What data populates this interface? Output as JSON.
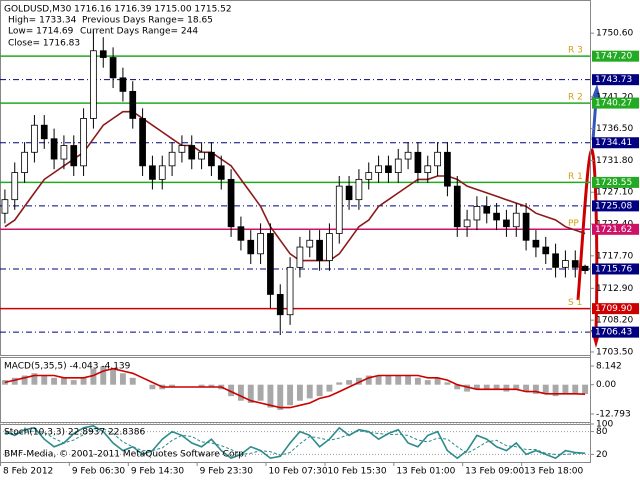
{
  "chart_data": [
    {
      "type": "candlestick",
      "annotations": [
        "GOLDUSD,M30  1716.16 1716.39 1715.00 1715.52",
        "High= 1733.34",
        "Previous Days Range= 18.65",
        "Low= 1714.69",
        "Current Days Range= 244",
        "Close= 1716.83"
      ],
      "categories": [
        "8 Feb 2012",
        null,
        null,
        null,
        null,
        null,
        null,
        "9 Feb 06:30",
        null,
        null,
        null,
        null,
        null,
        "9 Feb 14:30",
        null,
        null,
        null,
        null,
        null,
        null,
        "9 Feb 23:30",
        null,
        null,
        null,
        null,
        null,
        null,
        "10 Feb 07:30",
        null,
        null,
        null,
        null,
        null,
        "10 Feb 15:30",
        null,
        null,
        null,
        null,
        null,
        null,
        "13 Feb 01:00",
        null,
        null,
        null,
        null,
        null,
        null,
        "13 Feb 09:00",
        null,
        null,
        null,
        null,
        null,
        "13 Feb 18:00",
        null,
        null,
        null,
        null,
        null,
        null
      ],
      "open": [
        1724,
        1726,
        1730,
        1733,
        1737,
        1735,
        1732,
        1734,
        1731,
        1738,
        1748,
        1747,
        1744,
        1742,
        1738,
        1731,
        1729,
        1731,
        1733,
        1734,
        1732,
        1733,
        1731,
        1729,
        1722,
        1720,
        1718,
        1721,
        1712,
        1709,
        1716,
        1719,
        1720,
        1717,
        1721,
        1728,
        1726,
        1729,
        1730,
        1731,
        1730,
        1732,
        1733,
        1730,
        1731,
        1733,
        1728,
        1722,
        1723,
        1725,
        1724,
        1723,
        1722,
        1724,
        1720,
        1719,
        1718,
        1716,
        1717,
        1716.16
      ],
      "high": [
        1727.5,
        1731.5,
        1734.5,
        1738.5,
        1738.5,
        1736.5,
        1735.5,
        1735.5,
        1739.5,
        1751,
        1750,
        1748.5,
        1745.5,
        1743.5,
        1739.5,
        1732.5,
        1732.5,
        1734.5,
        1735.5,
        1735.5,
        1734.5,
        1734.5,
        1732.5,
        1730.5,
        1723.5,
        1721.5,
        1722.5,
        1722.5,
        1713.5,
        1717.5,
        1720.5,
        1721.5,
        1721.5,
        1722.5,
        1729.5,
        1729.5,
        1730.5,
        1731.5,
        1732.5,
        1732.5,
        1733.5,
        1734.5,
        1734.5,
        1732.5,
        1734.5,
        1734.5,
        1729.5,
        1724.5,
        1726.5,
        1726.5,
        1725.5,
        1724.5,
        1725.5,
        1725.5,
        1721.5,
        1720.5,
        1719.5,
        1718.5,
        1718.5,
        1716.39
      ],
      "low": [
        1722.5,
        1724.5,
        1728.5,
        1731.5,
        1733.5,
        1730.5,
        1730.5,
        1729.5,
        1729.5,
        1736.5,
        1745.5,
        1742.5,
        1740.5,
        1736.5,
        1729.5,
        1727.5,
        1727.5,
        1729.5,
        1731.5,
        1730.5,
        1730.5,
        1729.5,
        1727.5,
        1720.5,
        1718.5,
        1716.5,
        1716.5,
        1710,
        1706,
        1707.5,
        1714.5,
        1717.5,
        1715.5,
        1715.5,
        1719.5,
        1724.5,
        1724.5,
        1727.5,
        1728.5,
        1728.5,
        1728.5,
        1730.5,
        1728.5,
        1728.5,
        1729.5,
        1726.5,
        1720.5,
        1720.5,
        1721.5,
        1722.5,
        1721.5,
        1720.5,
        1720.5,
        1718.5,
        1717.5,
        1716.5,
        1714.5,
        1714.5,
        1714.5,
        1715.0
      ],
      "close": [
        1726,
        1730,
        1733,
        1737,
        1735,
        1732,
        1734,
        1731,
        1738,
        1748,
        1747,
        1744,
        1742,
        1738,
        1731,
        1729,
        1731,
        1733,
        1734,
        1732,
        1733,
        1731,
        1729,
        1722,
        1720,
        1718,
        1721,
        1712,
        1709,
        1716,
        1719,
        1720,
        1717,
        1721,
        1728,
        1726,
        1729,
        1730,
        1731,
        1730,
        1732,
        1733,
        1730,
        1731,
        1733,
        1728,
        1722,
        1723,
        1725,
        1724,
        1723,
        1722,
        1724,
        1720,
        1719,
        1718,
        1716,
        1717,
        1716,
        1715.52
      ],
      "series": [
        {
          "color": "#8b1a1a",
          "values": [
            1722,
            1723,
            1725,
            1727,
            1729,
            1730,
            1731,
            1732,
            1733,
            1735,
            1737,
            1738,
            1739,
            1739,
            1738,
            1737,
            1736,
            1735,
            1734,
            1734,
            1733,
            1733,
            1732,
            1731,
            1729,
            1727,
            1725,
            1722,
            1720,
            1718,
            1717,
            1717,
            1717,
            1717,
            1718,
            1720,
            1722,
            1723,
            1725,
            1726,
            1727,
            1728,
            1729,
            1729,
            1729.5,
            1729.5,
            1729,
            1728,
            1727.5,
            1727,
            1726.5,
            1726,
            1725.5,
            1725,
            1724,
            1723.5,
            1723,
            1722,
            1721.5,
            1721
          ]
        }
      ],
      "levels": [
        {
          "name": "R 3",
          "value": 1747.2,
          "label": "1747.20",
          "color": "#22aa22"
        },
        {
          "value": 1743.73,
          "label": "1743.73",
          "color": "#000080"
        },
        {
          "name": "R 2",
          "value": 1740.27,
          "label": "1740.27",
          "color": "#22aa22"
        },
        {
          "value": 1734.41,
          "label": "1734.41",
          "color": "#000080"
        },
        {
          "name": "R 1",
          "value": 1728.55,
          "label": "1728.55",
          "color": "#22aa22"
        },
        {
          "value": 1725.08,
          "label": "1725.08",
          "color": "#000080"
        },
        {
          "name": "PP",
          "value": 1721.62,
          "label": "1721.62",
          "color": "#cc1166"
        },
        {
          "value": 1715.76,
          "label": "1715.76",
          "color": "#000080"
        },
        {
          "name": "S 1",
          "value": 1709.9,
          "label": "1709.90",
          "color": "#cc0000"
        },
        {
          "value": 1706.43,
          "label": "1706.43",
          "color": "#000080"
        }
      ],
      "ylim": [
        1703.05,
        1755.5
      ],
      "yticks": [
        {
          "value": 1750.6,
          "label": "1750.60"
        },
        {
          "value": 1741.2,
          "label": "1741.20"
        },
        {
          "value": 1736.5,
          "label": "1736.50"
        },
        {
          "value": 1731.8,
          "label": "1731.80"
        },
        {
          "value": 1727.1,
          "label": "1727.10"
        },
        {
          "value": 1722.4,
          "label": "1722.40"
        },
        {
          "value": 1717.7,
          "label": "1717.70"
        },
        {
          "value": 1712.9,
          "label": "1712.90"
        },
        {
          "value": 1708.2,
          "label": "1708.20"
        },
        {
          "value": 1703.5,
          "label": "1703.50"
        }
      ],
      "grid": false
    },
    {
      "type": "indicator",
      "title": "MACD(5,35,5) -4.043 -4.139",
      "series": [
        {
          "kind": "bar",
          "color": "#a8a8a8",
          "values": [
            2,
            3,
            4,
            5,
            4,
            3,
            3,
            2,
            3,
            7,
            8,
            7,
            5,
            3,
            0,
            -2,
            -2,
            -1,
            0,
            0,
            -1,
            -1,
            -2,
            -5,
            -7,
            -8,
            -7,
            -10,
            -11,
            -9,
            -7,
            -6,
            -5,
            -3,
            1,
            2,
            3,
            4,
            4,
            4,
            4,
            4,
            3,
            2,
            3,
            1,
            -2,
            -3,
            -2,
            -2,
            -2,
            -3,
            -2,
            -3,
            -4,
            -4,
            -5,
            -4,
            -4,
            -4.043
          ]
        },
        {
          "kind": "line",
          "color": "#cc0000",
          "values": [
            1,
            2,
            3,
            4,
            4,
            4,
            3,
            3,
            3,
            4,
            6,
            7,
            6,
            5,
            3,
            1,
            -1,
            -1,
            -1,
            -1,
            -1,
            -1,
            -1,
            -3,
            -5,
            -7,
            -8,
            -9,
            -10,
            -10,
            -9,
            -8,
            -6,
            -5,
            -3,
            -1,
            1,
            3,
            4,
            4,
            4,
            4,
            4,
            3,
            3,
            2,
            0,
            -1,
            -2,
            -2,
            -2,
            -2,
            -2,
            -3,
            -3,
            -4,
            -4,
            -4,
            -4,
            -4.139
          ]
        }
      ],
      "ylim": [
        -16.3,
        12.1
      ],
      "yticks": [
        8.142,
        {
          "value": 0,
          "label": "0.00"
        },
        -12.793
      ],
      "grid": false
    },
    {
      "type": "indicator",
      "title": "Stoch(10,3,3) 22.8937 22.8386",
      "series": [
        {
          "kind": "line",
          "color": "#2e8b8b",
          "values": [
            80,
            70,
            85,
            90,
            60,
            40,
            50,
            75,
            90,
            95,
            80,
            50,
            30,
            40,
            20,
            30,
            60,
            80,
            70,
            50,
            40,
            60,
            30,
            10,
            20,
            40,
            30,
            10,
            15,
            50,
            80,
            70,
            40,
            60,
            90,
            70,
            85,
            80,
            60,
            75,
            85,
            50,
            40,
            70,
            80,
            30,
            10,
            30,
            70,
            60,
            40,
            30,
            50,
            20,
            30,
            20,
            10,
            30,
            25,
            22.8937
          ]
        },
        {
          "kind": "dash",
          "color": "#2e8b8b",
          "values": [
            75,
            75,
            78,
            82,
            78,
            62,
            50,
            58,
            72,
            87,
            88,
            75,
            53,
            40,
            30,
            30,
            37,
            57,
            70,
            67,
            53,
            50,
            43,
            33,
            20,
            23,
            30,
            27,
            18,
            25,
            48,
            67,
            63,
            57,
            63,
            73,
            82,
            78,
            75,
            72,
            73,
            70,
            58,
            53,
            63,
            60,
            40,
            23,
            37,
            53,
            57,
            43,
            40,
            33,
            33,
            23,
            20,
            20,
            22,
            22.8386
          ]
        }
      ],
      "ylim": [
        0,
        100
      ],
      "yticks": [
        100,
        80,
        20
      ],
      "grid": true
    }
  ],
  "copyright": "BMF-Media, © 2001-2011 MetaQuotes Software Corp."
}
